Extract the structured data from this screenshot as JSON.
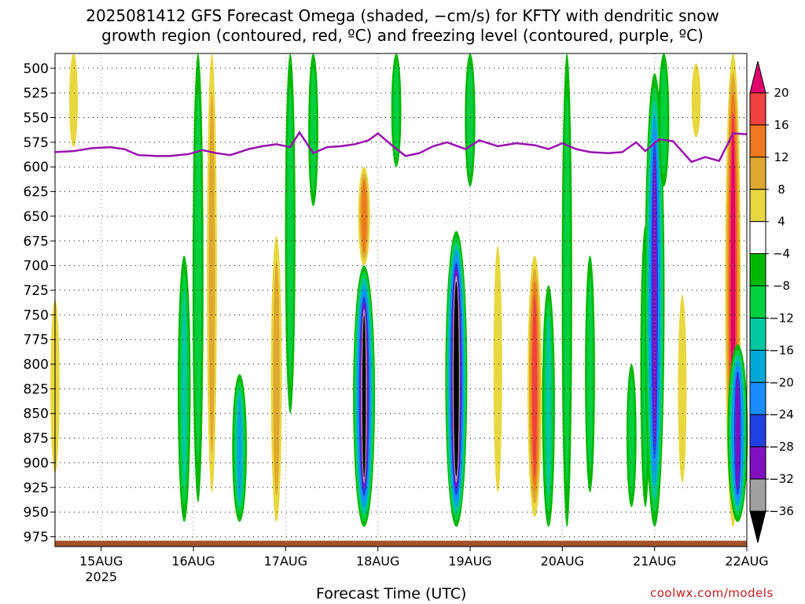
{
  "title": "2025081412 GFS Forecast Omega (shaded, −cm/s) for KFTY with dendritic snow\ngrowth region (contoured, red, ºC) and freezing level (contoured, purple, ºC)",
  "xaxis_title": "Forecast Time (UTC)",
  "credit": "coolwx.com/models",
  "chart_data": {
    "type": "heatmap",
    "title": "2025081412 GFS Forecast Omega (shaded, −cm/s) for KFTY with dendritic snow growth region (contoured, red, ºC) and freezing level (contoured, purple, ºC)",
    "xlabel": "Forecast Time (UTC)",
    "ylabel": "",
    "x_tick_labels": [
      "15AUG",
      "16AUG",
      "17AUG",
      "18AUG",
      "19AUG",
      "20AUG",
      "21AUG",
      "22AUG"
    ],
    "x_year_label": "2025",
    "x_range_days": [
      14.5,
      22.0
    ],
    "y_tick_labels": [
      "500",
      "525",
      "550",
      "575",
      "600",
      "625",
      "650",
      "675",
      "700",
      "725",
      "750",
      "775",
      "800",
      "825",
      "850",
      "875",
      "900",
      "925",
      "950",
      "975"
    ],
    "y_range": [
      485,
      985
    ],
    "y_inverted": true,
    "grid": true,
    "colorbar": {
      "labels": [
        "20",
        "16",
        "12",
        "8",
        "4",
        "−4",
        "−8",
        "−12",
        "−16",
        "−20",
        "−24",
        "−28",
        "−32",
        "−36"
      ],
      "colors": [
        "#e0006e",
        "#f04040",
        "#f07820",
        "#e0a830",
        "#e8d840",
        "#ffffff",
        "#00b800",
        "#00d040",
        "#00c8a0",
        "#00a8d8",
        "#1a8cff",
        "#2040e0",
        "#8010c0",
        "#a0a0a0",
        "#000000"
      ],
      "bounds": [
        20,
        16,
        12,
        8,
        4,
        -4,
        -8,
        -12,
        -16,
        -20,
        -24,
        -28,
        -32,
        -36
      ]
    },
    "omega_regions": [
      {
        "day": 14.5,
        "p_top": 735,
        "p_bot": 910,
        "peak": 6
      },
      {
        "day": 14.7,
        "p_top": 485,
        "p_bot": 580,
        "peak": 5
      },
      {
        "day": 15.9,
        "p_top": 690,
        "p_bot": 960,
        "peak": -14
      },
      {
        "day": 16.05,
        "p_top": 485,
        "p_bot": 940,
        "peak": -10
      },
      {
        "day": 16.2,
        "p_top": 485,
        "p_bot": 930,
        "peak": 8
      },
      {
        "day": 16.5,
        "p_top": 810,
        "p_bot": 960,
        "peak": -18
      },
      {
        "day": 16.9,
        "p_top": 670,
        "p_bot": 960,
        "peak": 10
      },
      {
        "day": 17.05,
        "p_top": 485,
        "p_bot": 850,
        "peak": -9
      },
      {
        "day": 17.3,
        "p_top": 485,
        "p_bot": 640,
        "peak": -8
      },
      {
        "day": 17.85,
        "p_top": 600,
        "p_bot": 700,
        "peak": 12
      },
      {
        "day": 17.85,
        "p_top": 700,
        "p_bot": 965,
        "peak": -36
      },
      {
        "day": 18.2,
        "p_top": 485,
        "p_bot": 600,
        "peak": -8
      },
      {
        "day": 18.85,
        "p_top": 665,
        "p_bot": 965,
        "peak": -40
      },
      {
        "day": 19.0,
        "p_top": 485,
        "p_bot": 620,
        "peak": -9
      },
      {
        "day": 19.3,
        "p_top": 680,
        "p_bot": 930,
        "peak": 5
      },
      {
        "day": 19.7,
        "p_top": 690,
        "p_bot": 955,
        "peak": 17
      },
      {
        "day": 19.85,
        "p_top": 720,
        "p_bot": 965,
        "peak": -14
      },
      {
        "day": 20.05,
        "p_top": 485,
        "p_bot": 965,
        "peak": -9
      },
      {
        "day": 20.3,
        "p_top": 690,
        "p_bot": 930,
        "peak": -8
      },
      {
        "day": 20.75,
        "p_top": 800,
        "p_bot": 945,
        "peak": -8
      },
      {
        "day": 20.9,
        "p_top": 660,
        "p_bot": 945,
        "peak": -8
      },
      {
        "day": 21.0,
        "p_top": 505,
        "p_bot": 965,
        "peak": -29
      },
      {
        "day": 21.1,
        "p_top": 485,
        "p_bot": 620,
        "peak": -10
      },
      {
        "day": 21.3,
        "p_top": 730,
        "p_bot": 920,
        "peak": 5
      },
      {
        "day": 21.45,
        "p_top": 495,
        "p_bot": 570,
        "peak": 6
      },
      {
        "day": 21.85,
        "p_top": 485,
        "p_bot": 965,
        "peak": 20
      },
      {
        "day": 21.9,
        "p_top": 780,
        "p_bot": 960,
        "peak": -30
      }
    ],
    "freezing_level": {
      "days": [
        14.5,
        14.7,
        14.9,
        15.1,
        15.25,
        15.4,
        15.6,
        15.75,
        15.95,
        16.1,
        16.25,
        16.4,
        16.6,
        16.75,
        16.9,
        17.05,
        17.15,
        17.3,
        17.45,
        17.6,
        17.75,
        17.9,
        18.0,
        18.15,
        18.3,
        18.45,
        18.6,
        18.75,
        18.95,
        19.1,
        19.3,
        19.5,
        19.7,
        19.85,
        20.0,
        20.15,
        20.3,
        20.5,
        20.65,
        20.8,
        20.9,
        21.05,
        21.2,
        21.4,
        21.55,
        21.7,
        21.85,
        22.0
      ],
      "p": [
        585,
        584,
        581,
        580,
        582,
        588,
        589,
        589,
        587,
        583,
        586,
        588,
        582,
        579,
        577,
        580,
        565,
        586,
        580,
        579,
        577,
        573,
        566,
        578,
        589,
        586,
        579,
        575,
        582,
        573,
        579,
        576,
        578,
        582,
        576,
        582,
        585,
        586,
        585,
        575,
        584,
        572,
        574,
        595,
        590,
        594,
        566,
        567
      ]
    },
    "surface": {
      "p_top": 979,
      "color": "#a5512b"
    }
  }
}
